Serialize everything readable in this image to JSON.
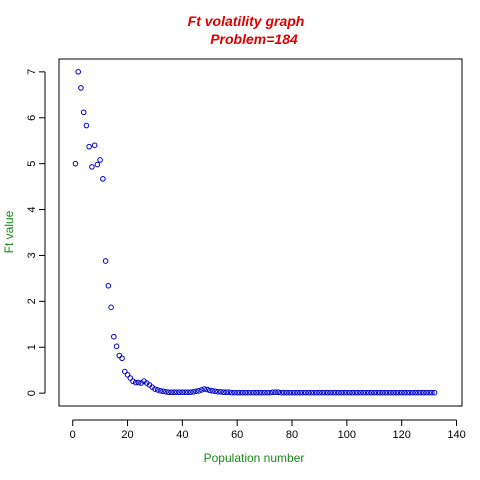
{
  "chart_data": {
    "type": "scatter",
    "title": "Ft volatility graph",
    "subtitle": "Problem=184",
    "xlabel": "Population number",
    "ylabel": "Ft value",
    "xlim": [
      -5,
      142
    ],
    "ylim": [
      -0.28,
      7.28
    ],
    "x_ticks": [
      0,
      20,
      40,
      60,
      80,
      100,
      120,
      140
    ],
    "y_ticks": [
      0,
      1,
      2,
      3,
      4,
      5,
      6,
      7
    ],
    "x_tick_labels": [
      "0",
      "20",
      "40",
      "60",
      "80",
      "100",
      "120",
      "140"
    ],
    "y_tick_labels": [
      "0",
      "1",
      "2",
      "3",
      "4",
      "5",
      "6",
      "7"
    ],
    "grid": false,
    "colors": {
      "title": "#e00000",
      "axis_labels": "#1a8a1a",
      "points": "#0000cc"
    },
    "series": [
      {
        "marker": "open-circle",
        "x": [
          1,
          2,
          3,
          4,
          5,
          6,
          7,
          8,
          9,
          10,
          11,
          12,
          13,
          14,
          15,
          16,
          17,
          18,
          19,
          20,
          21,
          22,
          23,
          24,
          25,
          26,
          27,
          28,
          29,
          30,
          31,
          32,
          33,
          34,
          35,
          36,
          37,
          38,
          39,
          40,
          41,
          42,
          43,
          44,
          45,
          46,
          47,
          48,
          49,
          50,
          51,
          52,
          53,
          54,
          55,
          56,
          57,
          58,
          59,
          60,
          61,
          62,
          63,
          64,
          65,
          66,
          67,
          68,
          69,
          70,
          71,
          72,
          73,
          74,
          75,
          76,
          77,
          78,
          79,
          80,
          81,
          82,
          83,
          84,
          85,
          86,
          87,
          88,
          89,
          90,
          91,
          92,
          93,
          94,
          95,
          96,
          97,
          98,
          99,
          100,
          101,
          102,
          103,
          104,
          105,
          106,
          107,
          108,
          109,
          110,
          111,
          112,
          113,
          114,
          115,
          116,
          117,
          118,
          119,
          120,
          121,
          122,
          123,
          124,
          125,
          126,
          127,
          128,
          129,
          130,
          131,
          132
        ],
        "y": [
          5.0,
          7.0,
          6.65,
          6.12,
          5.83,
          5.37,
          4.93,
          5.4,
          4.98,
          5.08,
          4.67,
          2.88,
          2.34,
          1.87,
          1.23,
          1.02,
          0.82,
          0.76,
          0.47,
          0.4,
          0.33,
          0.26,
          0.23,
          0.23,
          0.22,
          0.26,
          0.22,
          0.18,
          0.13,
          0.09,
          0.07,
          0.05,
          0.04,
          0.03,
          0.02,
          0.02,
          0.02,
          0.02,
          0.02,
          0.02,
          0.02,
          0.02,
          0.02,
          0.03,
          0.04,
          0.05,
          0.07,
          0.09,
          0.08,
          0.06,
          0.05,
          0.04,
          0.03,
          0.03,
          0.02,
          0.02,
          0.02,
          0.01,
          0.01,
          0.01,
          0.01,
          0.01,
          0.01,
          0.01,
          0.01,
          0.01,
          0.01,
          0.01,
          0.01,
          0.01,
          0.01,
          0.01,
          0.02,
          0.02,
          0.02,
          0.01,
          0.01,
          0.01,
          0.01,
          0.01,
          0.01,
          0.01,
          0.01,
          0.01,
          0.01,
          0.01,
          0.01,
          0.01,
          0.01,
          0.01,
          0.01,
          0.01,
          0.01,
          0.01,
          0.01,
          0.01,
          0.01,
          0.01,
          0.01,
          0.01,
          0.01,
          0.01,
          0.01,
          0.01,
          0.01,
          0.01,
          0.01,
          0.01,
          0.01,
          0.01,
          0.01,
          0.01,
          0.01,
          0.01,
          0.01,
          0.01,
          0.01,
          0.01,
          0.01,
          0.01,
          0.01,
          0.01,
          0.01,
          0.01,
          0.01,
          0.01,
          0.01,
          0.01,
          0.01,
          0.01,
          0.01,
          0.01
        ]
      }
    ]
  }
}
